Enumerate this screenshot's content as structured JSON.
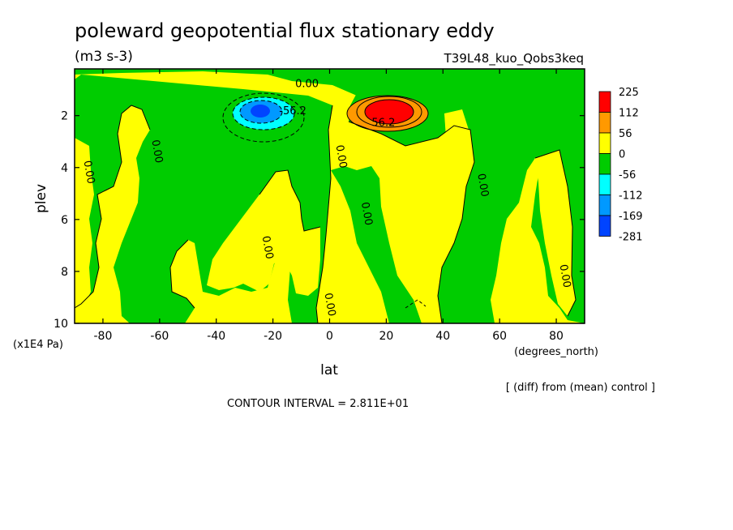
{
  "chart_data": {
    "type": "heatmap",
    "title": "poleward geopotential flux stationary eddy",
    "units": "(m3 s-3)",
    "experiment": "T39L48_kuo_Qobs3keq",
    "xlabel": "lat",
    "xunits": "(degrees_north)",
    "ylabel": "plev",
    "yunits": "(x1E4 Pa)",
    "xlim": [
      -90,
      90
    ],
    "ylim": [
      10,
      0.2
    ],
    "x_ticks": [
      -80,
      -60,
      -40,
      -20,
      0,
      20,
      40,
      60,
      80
    ],
    "y_ticks": [
      2,
      4,
      6,
      8,
      10
    ],
    "diff_note": "[ (diff) from (mean) control ]",
    "contour_interval": "CONTOUR INTERVAL = 2.811E+01",
    "legend": {
      "labels": [
        "225",
        "112",
        "56",
        "0",
        "-56",
        "-112",
        "-169",
        "-281"
      ],
      "colors": [
        "#ff0000",
        "#ff9900",
        "#ffff00",
        "#00cc00",
        "#00ffff",
        "#0099ff",
        "#0044ff"
      ]
    },
    "contour_labels": [
      {
        "text": "0.00",
        "lat": -8,
        "plev": 0.9
      },
      {
        "text": "-56.2",
        "lat": -13,
        "plev": 1.95
      },
      {
        "text": "56.2",
        "lat": 19,
        "plev": 2.4
      },
      {
        "text": "0.00",
        "lat": -62,
        "plev": 3.4
      },
      {
        "text": "0.00",
        "lat": -86,
        "plev": 4.2
      },
      {
        "text": "0.00",
        "lat": 3,
        "plev": 3.6
      },
      {
        "text": "0.00",
        "lat": 12,
        "plev": 5.8
      },
      {
        "text": "0.00",
        "lat": 53,
        "plev": 4.7
      },
      {
        "text": "0.00",
        "lat": -23,
        "plev": 7.1
      },
      {
        "text": "0.00",
        "lat": 82,
        "plev": 8.2
      },
      {
        "text": "0.00",
        "lat": -1,
        "plev": 9.3
      }
    ],
    "regions": {
      "background_positive": "#ffff00",
      "negative_green": "#00cc00",
      "strong_positive_max": "#ff0000",
      "strong_negative_min": "#0044ff"
    }
  }
}
